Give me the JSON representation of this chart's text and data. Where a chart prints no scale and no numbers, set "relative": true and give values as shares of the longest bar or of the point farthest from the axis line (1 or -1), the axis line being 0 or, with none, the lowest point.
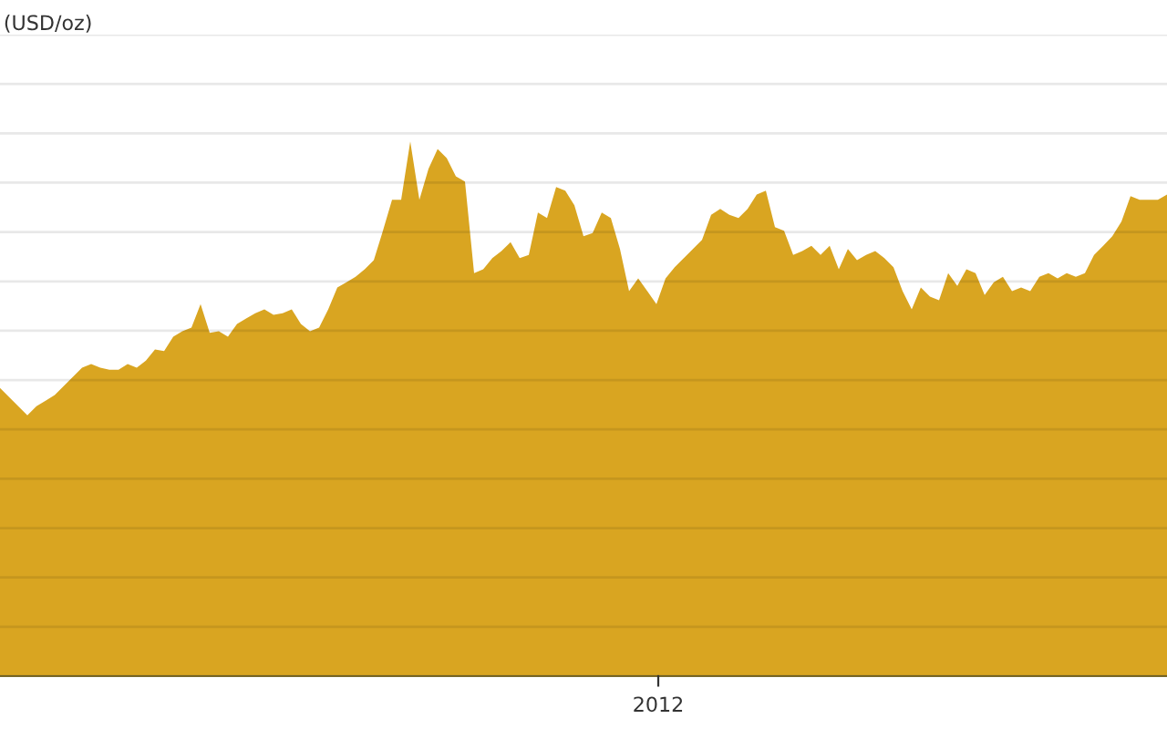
{
  "chart_data": {
    "type": "area",
    "relative": true,
    "grid": "y",
    "annotations": [
      "(USD/oz)",
      "2012"
    ],
    "categories": [
      null,
      null,
      null,
      null,
      null,
      null,
      null,
      null,
      null,
      null,
      null,
      null,
      null,
      null,
      null,
      null,
      null,
      null,
      null,
      null,
      null,
      null,
      null,
      null,
      null,
      null,
      null,
      null,
      null,
      null,
      null,
      null,
      null,
      null,
      null,
      null,
      null,
      null,
      null,
      null,
      null,
      null,
      null,
      null,
      null,
      null,
      null,
      null,
      null,
      null,
      null,
      null,
      null,
      null,
      null,
      null,
      null,
      null,
      null,
      null,
      null,
      null,
      null,
      null,
      null,
      null,
      null,
      null,
      null,
      null,
      null,
      null,
      null,
      null,
      null,
      null,
      null,
      null,
      null,
      null,
      null,
      null,
      null,
      null,
      null,
      null,
      null,
      null,
      null,
      null,
      null,
      null,
      null,
      null,
      null,
      null,
      null,
      null,
      null,
      null,
      null,
      null,
      null,
      null,
      null,
      null,
      null,
      null,
      null,
      null,
      null,
      null,
      null,
      null,
      null,
      null,
      null,
      null,
      null,
      null,
      null,
      null,
      null,
      null,
      null,
      null,
      null,
      null,
      null
    ],
    "series": [
      {
        "color": "#d9a521",
        "values": [
          0.539,
          0.522,
          0.505,
          0.488,
          0.505,
          0.515,
          0.526,
          0.543,
          0.56,
          0.577,
          0.584,
          0.577,
          0.573,
          0.573,
          0.584,
          0.577,
          0.59,
          0.611,
          0.608,
          0.635,
          0.645,
          0.652,
          0.696,
          0.642,
          0.645,
          0.635,
          0.659,
          0.669,
          0.679,
          0.686,
          0.676,
          0.679,
          0.686,
          0.659,
          0.645,
          0.652,
          0.686,
          0.727,
          0.737,
          0.747,
          0.761,
          0.778,
          0.833,
          0.891,
          0.891,
          1,
          0.891,
          0.949,
          0.986,
          0.969,
          0.935,
          0.925,
          0.754,
          0.761,
          0.782,
          0.795,
          0.812,
          0.782,
          0.788,
          0.867,
          0.857,
          0.915,
          0.908,
          0.881,
          0.823,
          0.829,
          0.867,
          0.857,
          0.799,
          0.72,
          0.744,
          0.72,
          0.696,
          0.744,
          0.765,
          0.782,
          0.799,
          0.816,
          0.863,
          0.874,
          0.863,
          0.857,
          0.874,
          0.901,
          0.908,
          0.84,
          0.833,
          0.788,
          0.795,
          0.805,
          0.788,
          0.805,
          0.761,
          0.799,
          0.778,
          0.788,
          0.795,
          0.782,
          0.765,
          0.72,
          0.686,
          0.727,
          0.71,
          0.703,
          0.754,
          0.73,
          0.761,
          0.754,
          0.713,
          0.737,
          0.747,
          0.72,
          0.727,
          0.72,
          0.747,
          0.754,
          0.744,
          0.754,
          0.747,
          0.754,
          0.788,
          0.805,
          0.823,
          0.85,
          0.898,
          0.891,
          0.891,
          0.891,
          0.901
        ]
      }
    ]
  }
}
